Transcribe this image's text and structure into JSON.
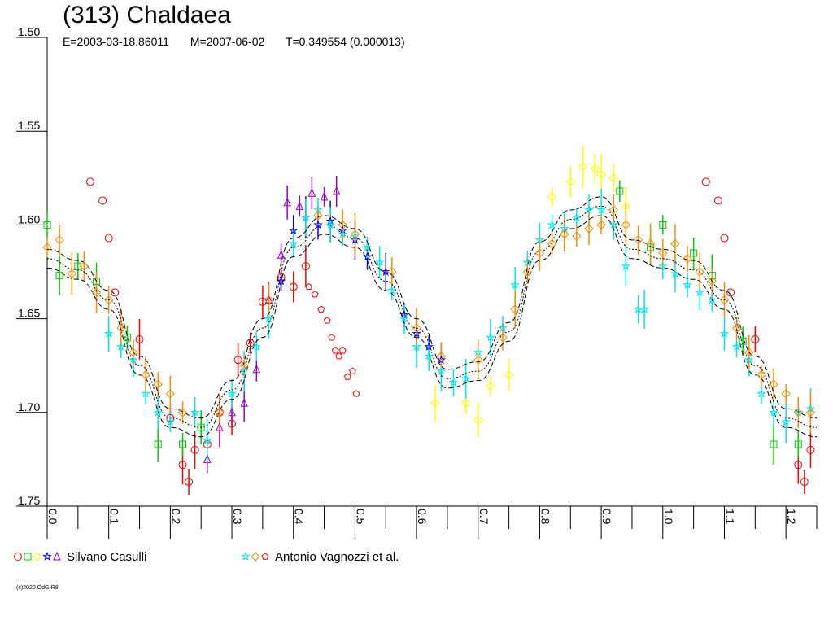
{
  "header": {
    "title": "(313) Chaldaea",
    "epoch": "E=2003-03-18.86011",
    "mid": "M=2007-06-02",
    "period": "T=0.349554 (0.000013)"
  },
  "legend": [
    {
      "label": "Silvano Casulli",
      "markers": [
        "circle-icon",
        "square-icon",
        "diamond-icon",
        "star-icon",
        "triangle-icon"
      ],
      "colors": [
        "#ff0000",
        "#00cc00",
        "#ffff00",
        "#0000ff",
        "#9900cc"
      ]
    },
    {
      "label": "Antonio Vagnozzi et al.",
      "markers": [
        "star-icon",
        "diamond-icon",
        "pentagon-icon"
      ],
      "colors": [
        "#00e5ee",
        "#ff8c00",
        "#ff0000"
      ]
    }
  ],
  "copyright": "(c)2020 OdG-R8",
  "chart_data": {
    "type": "scatter",
    "title": "(313) Chaldaea",
    "xlabel": "",
    "ylabel": "",
    "xlim": [
      0.0,
      1.25
    ],
    "ylim": [
      1.75,
      1.5
    ],
    "y_inverted": true,
    "x_ticks": [
      "0.0",
      "0.1",
      "0.2",
      "0.3",
      "0.4",
      "0.5",
      "0.6",
      "0.7",
      "0.8",
      "0.9",
      "1.0",
      "1.1",
      "1.2"
    ],
    "y_ticks": [
      "1.50",
      "1.55",
      "1.60",
      "1.65",
      "1.70",
      "1.75"
    ],
    "grid": false,
    "fit_curve": {
      "phase": [
        0.0,
        0.05,
        0.1,
        0.15,
        0.2,
        0.25,
        0.3,
        0.35,
        0.4,
        0.45,
        0.5,
        0.55,
        0.6,
        0.65,
        0.7,
        0.75,
        0.8,
        0.85,
        0.9,
        0.95,
        1.0,
        1.05,
        1.1,
        1.15,
        1.2,
        1.25
      ],
      "mag": [
        1.618,
        1.624,
        1.64,
        1.675,
        1.703,
        1.708,
        1.688,
        1.655,
        1.612,
        1.6,
        1.607,
        1.63,
        1.655,
        1.682,
        1.678,
        1.657,
        1.614,
        1.597,
        1.59,
        1.613,
        1.618,
        1.624,
        1.64,
        1.675,
        1.703,
        1.708
      ]
    },
    "series": [
      {
        "name": "Silvano Casulli",
        "marker": "circle",
        "color": "#ff0000",
        "points": [
          [
            0.07,
            1.577
          ],
          [
            0.09,
            1.587
          ],
          [
            0.1,
            1.607
          ],
          [
            0.11,
            1.636
          ],
          [
            0.15,
            1.661
          ],
          [
            0.2,
            1.703
          ],
          [
            0.22,
            1.728
          ],
          [
            0.23,
            1.737
          ],
          [
            0.24,
            1.72
          ],
          [
            0.26,
            1.717
          ],
          [
            0.28,
            1.7
          ],
          [
            0.3,
            1.706
          ],
          [
            0.31,
            1.672
          ],
          [
            0.33,
            1.663
          ],
          [
            0.35,
            1.641
          ],
          [
            0.38,
            1.628
          ],
          [
            0.4,
            1.633
          ],
          [
            0.42,
            1.622
          ],
          [
            1.07,
            1.577
          ],
          [
            1.09,
            1.587
          ],
          [
            1.1,
            1.607
          ],
          [
            1.11,
            1.636
          ],
          [
            1.15,
            1.661
          ],
          [
            1.22,
            1.728
          ],
          [
            1.23,
            1.737
          ],
          [
            1.24,
            1.72
          ]
        ]
      },
      {
        "name": "Silvano Casulli",
        "marker": "square",
        "color": "#00cc00",
        "points": [
          [
            0.0,
            1.6
          ],
          [
            0.02,
            1.627
          ],
          [
            0.05,
            1.622
          ],
          [
            0.08,
            1.63
          ],
          [
            0.13,
            1.66
          ],
          [
            0.18,
            1.717
          ],
          [
            0.22,
            1.717
          ],
          [
            0.25,
            1.708
          ],
          [
            0.93,
            1.582
          ],
          [
            0.98,
            1.612
          ],
          [
            1.0,
            1.6
          ],
          [
            1.05,
            1.615
          ],
          [
            1.08,
            1.627
          ],
          [
            1.13,
            1.662
          ],
          [
            1.18,
            1.717
          ],
          [
            1.22,
            1.717
          ]
        ]
      },
      {
        "name": "Silvano Casulli",
        "marker": "diamond",
        "color": "#ffff00",
        "points": [
          [
            0.63,
            1.695
          ],
          [
            0.68,
            1.695
          ],
          [
            0.7,
            1.704
          ],
          [
            0.72,
            1.686
          ],
          [
            0.75,
            1.68
          ],
          [
            0.82,
            1.585
          ],
          [
            0.85,
            1.577
          ],
          [
            0.87,
            1.569
          ],
          [
            0.89,
            1.57
          ],
          [
            0.9,
            1.573
          ],
          [
            0.92,
            1.575
          ],
          [
            0.94,
            1.59
          ]
        ]
      },
      {
        "name": "Silvano Casulli",
        "marker": "star",
        "color": "#0000ff",
        "points": [
          [
            0.38,
            1.63
          ],
          [
            0.4,
            1.603
          ],
          [
            0.42,
            1.596
          ],
          [
            0.44,
            1.6
          ],
          [
            0.46,
            1.598
          ],
          [
            0.48,
            1.603
          ],
          [
            0.5,
            1.608
          ],
          [
            0.52,
            1.617
          ],
          [
            0.55,
            1.625
          ],
          [
            0.58,
            1.648
          ],
          [
            0.6,
            1.658
          ],
          [
            0.62,
            1.665
          ],
          [
            0.64,
            1.672
          ]
        ]
      },
      {
        "name": "Silvano Casulli",
        "marker": "triangle",
        "color": "#9900cc",
        "points": [
          [
            0.26,
            1.725
          ],
          [
            0.28,
            1.708
          ],
          [
            0.3,
            1.7
          ],
          [
            0.32,
            1.695
          ],
          [
            0.34,
            1.677
          ],
          [
            0.36,
            1.64
          ],
          [
            0.38,
            1.616
          ],
          [
            0.39,
            1.588
          ],
          [
            0.41,
            1.59
          ],
          [
            0.43,
            1.583
          ],
          [
            0.45,
            1.585
          ],
          [
            0.47,
            1.582
          ]
        ]
      },
      {
        "name": "Antonio Vagnozzi et al.",
        "marker": "star",
        "color": "#00e5ee",
        "points": [
          [
            0.1,
            1.658
          ],
          [
            0.12,
            1.665
          ],
          [
            0.14,
            1.672
          ],
          [
            0.16,
            1.69
          ],
          [
            0.18,
            1.7
          ],
          [
            0.2,
            1.705
          ],
          [
            0.24,
            1.7
          ],
          [
            0.26,
            1.715
          ],
          [
            0.3,
            1.69
          ],
          [
            0.32,
            1.678
          ],
          [
            0.34,
            1.665
          ],
          [
            0.36,
            1.65
          ],
          [
            0.4,
            1.61
          ],
          [
            0.42,
            1.596
          ],
          [
            0.44,
            1.592
          ],
          [
            0.46,
            1.6
          ],
          [
            0.48,
            1.605
          ],
          [
            0.5,
            1.606
          ],
          [
            0.52,
            1.612
          ],
          [
            0.54,
            1.62
          ],
          [
            0.56,
            1.635
          ],
          [
            0.58,
            1.65
          ],
          [
            0.6,
            1.665
          ],
          [
            0.62,
            1.67
          ],
          [
            0.64,
            1.678
          ],
          [
            0.66,
            1.684
          ],
          [
            0.68,
            1.682
          ],
          [
            0.7,
            1.668
          ],
          [
            0.72,
            1.66
          ],
          [
            0.74,
            1.655
          ],
          [
            0.76,
            1.632
          ],
          [
            0.78,
            1.62
          ],
          [
            0.8,
            1.608
          ],
          [
            0.82,
            1.6
          ],
          [
            0.84,
            1.602
          ],
          [
            0.86,
            1.596
          ],
          [
            0.88,
            1.592
          ],
          [
            0.9,
            1.592
          ],
          [
            0.92,
            1.6
          ],
          [
            0.94,
            1.622
          ],
          [
            0.96,
            1.645
          ],
          [
            0.97,
            1.645
          ],
          [
            1.0,
            1.622
          ],
          [
            1.02,
            1.626
          ],
          [
            1.04,
            1.632
          ],
          [
            1.06,
            1.636
          ],
          [
            1.08,
            1.64
          ],
          [
            1.1,
            1.658
          ],
          [
            1.12,
            1.665
          ],
          [
            1.14,
            1.672
          ],
          [
            1.16,
            1.69
          ],
          [
            1.18,
            1.7
          ],
          [
            1.2,
            1.705
          ],
          [
            1.22,
            1.7
          ],
          [
            1.24,
            1.698
          ]
        ]
      },
      {
        "name": "Antonio Vagnozzi et al.",
        "marker": "diamond",
        "color": "#ff8c00",
        "points": [
          [
            0.0,
            1.612
          ],
          [
            0.02,
            1.608
          ],
          [
            0.04,
            1.626
          ],
          [
            0.06,
            1.622
          ],
          [
            0.08,
            1.636
          ],
          [
            0.1,
            1.64
          ],
          [
            0.12,
            1.655
          ],
          [
            0.14,
            1.668
          ],
          [
            0.16,
            1.68
          ],
          [
            0.18,
            1.685
          ],
          [
            0.2,
            1.69
          ],
          [
            0.22,
            1.7
          ],
          [
            0.28,
            1.7
          ],
          [
            0.32,
            1.675
          ],
          [
            0.36,
            1.64
          ],
          [
            0.44,
            1.595
          ],
          [
            0.48,
            1.6
          ],
          [
            0.5,
            1.605
          ],
          [
            0.56,
            1.625
          ],
          [
            0.6,
            1.655
          ],
          [
            0.64,
            1.67
          ],
          [
            0.7,
            1.672
          ],
          [
            0.74,
            1.66
          ],
          [
            0.76,
            1.645
          ],
          [
            0.78,
            1.625
          ],
          [
            0.8,
            1.615
          ],
          [
            0.82,
            1.61
          ],
          [
            0.84,
            1.605
          ],
          [
            0.86,
            1.606
          ],
          [
            0.88,
            1.602
          ],
          [
            0.9,
            1.6
          ],
          [
            0.92,
            1.592
          ],
          [
            0.94,
            1.6
          ],
          [
            0.96,
            1.608
          ],
          [
            0.98,
            1.61
          ],
          [
            1.0,
            1.615
          ],
          [
            1.02,
            1.61
          ],
          [
            1.04,
            1.618
          ],
          [
            1.06,
            1.625
          ],
          [
            1.08,
            1.63
          ],
          [
            1.1,
            1.64
          ],
          [
            1.12,
            1.655
          ],
          [
            1.14,
            1.668
          ],
          [
            1.16,
            1.68
          ],
          [
            1.18,
            1.685
          ],
          [
            1.2,
            1.69
          ],
          [
            1.22,
            1.7
          ],
          [
            1.24,
            1.7
          ]
        ]
      },
      {
        "name": "Antonio Vagnozzi et al.",
        "marker": "pentagon",
        "color": "#ff0000",
        "points": [
          [
            0.425,
            1.633
          ],
          [
            0.435,
            1.637
          ],
          [
            0.445,
            1.645
          ],
          [
            0.455,
            1.651
          ],
          [
            0.462,
            1.66
          ],
          [
            0.468,
            1.667
          ],
          [
            0.474,
            1.67
          ],
          [
            0.48,
            1.667
          ],
          [
            0.488,
            1.681
          ],
          [
            0.496,
            1.678
          ],
          [
            0.502,
            1.69
          ]
        ]
      }
    ]
  }
}
